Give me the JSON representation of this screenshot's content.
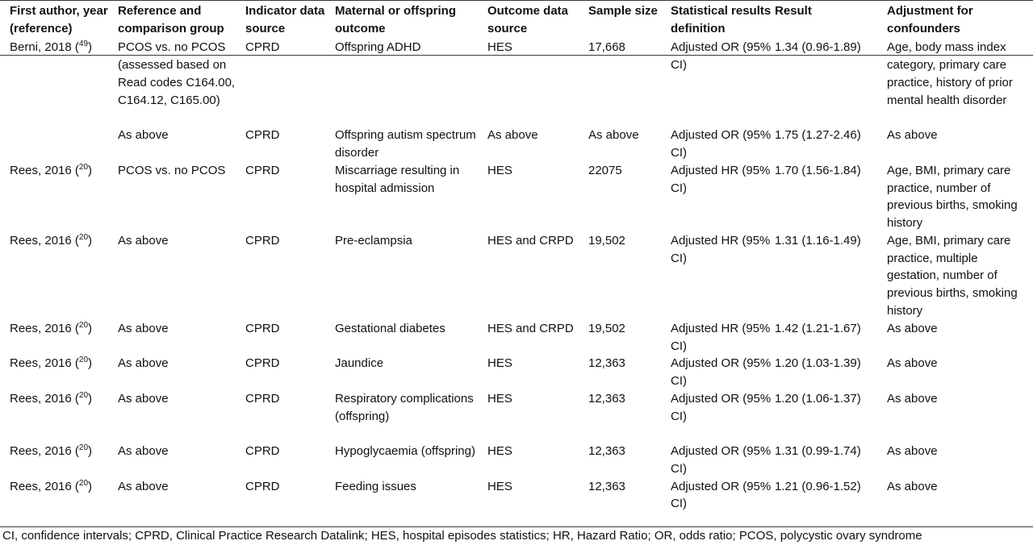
{
  "table": {
    "headers": [
      "First author, year (reference)",
      "Reference and comparison group",
      "Indicator data source",
      "Maternal or offspring outcome",
      "Outcome data source",
      "Sample size",
      "Statistical results definition",
      "Result",
      "Adjustment for confounders"
    ],
    "rows": [
      {
        "author": "Berni, 2018 (",
        "ref": "49",
        "author_close": ")",
        "cells": [
          "PCOS vs. no PCOS (assessed based on Read codes C164.00, C164.12, C165.00)",
          "CPRD",
          "Offspring ADHD",
          "HES",
          "17,668",
          "Adjusted OR (95% CI)",
          "1.34 (0.96-1.89)",
          "Age, body mass index category, primary care practice, history of prior mental health disorder"
        ]
      },
      {
        "author": "",
        "ref": "",
        "author_close": "",
        "cells": [
          "As above",
          "CPRD",
          "Offspring autism spectrum disorder",
          "As above",
          "As above",
          "Adjusted OR (95% CI)",
          "1.75 (1.27-2.46)",
          "As above"
        ]
      },
      {
        "author": "Rees, 2016 (",
        "ref": "20",
        "author_close": ")",
        "cells": [
          "PCOS vs. no PCOS",
          "CPRD",
          "Miscarriage resulting in hospital admission",
          "HES",
          "22075",
          "Adjusted HR (95% CI)",
          "1.70 (1.56-1.84)",
          "Age, BMI, primary care practice, number of previous births, smoking history"
        ]
      },
      {
        "author": "Rees, 2016 (",
        "ref": "20",
        "author_close": ")",
        "cells": [
          "As above",
          "CPRD",
          "Pre-eclampsia",
          "HES and CRPD",
          "19,502",
          "Adjusted HR (95% CI)",
          "1.31 (1.16-1.49)",
          "Age, BMI, primary care practice, multiple gestation, number of previous births, smoking history"
        ]
      },
      {
        "author": "Rees, 2016 (",
        "ref": "20",
        "author_close": ")",
        "cells": [
          "As above",
          "CPRD",
          "Gestational diabetes",
          "HES and CRPD",
          "19,502",
          "Adjusted HR (95% CI)",
          "1.42 (1.21-1.67)",
          "As above"
        ]
      },
      {
        "author": "Rees, 2016 (",
        "ref": "20",
        "author_close": ")",
        "cells": [
          "As above",
          "CPRD",
          "Jaundice",
          "HES",
          "12,363",
          "Adjusted OR (95% CI)",
          "1.20 (1.03-1.39)",
          "As above"
        ]
      },
      {
        "author": "Rees, 2016 (",
        "ref": "20",
        "author_close": ")",
        "cells": [
          "As above",
          "CPRD",
          "Respiratory complications (offspring)",
          "HES",
          "12,363",
          "Adjusted OR (95% CI)",
          "1.20 (1.06-1.37)",
          "As above"
        ]
      },
      {
        "author": "Rees, 2016 (",
        "ref": "20",
        "author_close": ")",
        "cells": [
          "As above",
          "CPRD",
          "Hypoglycaemia (offspring)",
          "HES",
          "12,363",
          "Adjusted OR (95% CI)",
          "1.31 (0.99-1.74)",
          "As above"
        ]
      },
      {
        "author": "Rees, 2016 (",
        "ref": "20",
        "author_close": ")",
        "cells": [
          "As above",
          "CPRD",
          "Feeding issues",
          "HES",
          "12,363",
          "Adjusted OR (95% CI)",
          "1.21 (0.96-1.52)",
          "As above"
        ]
      }
    ]
  },
  "footnote": "CI, confidence intervals; CPRD, Clinical Practice Research Datalink; HES, hospital episodes statistics; HR, Hazard Ratio; OR, odds ratio; PCOS, polycystic ovary syndrome"
}
